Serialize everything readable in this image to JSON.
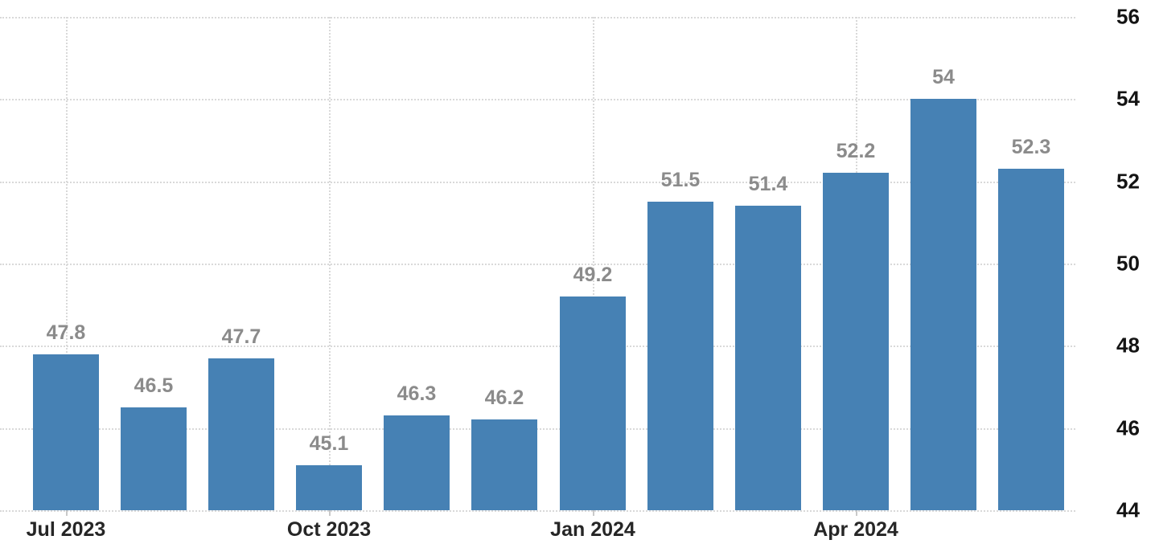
{
  "chart_data": {
    "type": "bar",
    "values": [
      47.8,
      46.5,
      47.7,
      45.1,
      46.3,
      46.2,
      49.2,
      51.5,
      51.4,
      52.2,
      54,
      52.3
    ],
    "data_labels": [
      "47.8",
      "46.5",
      "47.7",
      "45.1",
      "46.3",
      "46.2",
      "49.2",
      "51.5",
      "51.4",
      "52.2",
      "54",
      "52.3"
    ],
    "x_tick_labels": [
      {
        "bar_index": 0,
        "label": "Jul 2023"
      },
      {
        "bar_index": 3,
        "label": "Oct 2023"
      },
      {
        "bar_index": 6,
        "label": "Jan 2024"
      },
      {
        "bar_index": 9,
        "label": "Apr 2024"
      }
    ],
    "y_tick_labels": [
      "56",
      "54",
      "52",
      "50",
      "48",
      "46",
      "44"
    ],
    "ylim": [
      44,
      56
    ],
    "grid": true,
    "legend": false,
    "title": "",
    "xlabel": "",
    "ylabel": "",
    "colors": {
      "bar": "#4681b4",
      "gridline": "#d9d9d9",
      "data_label": "#8b8b8b",
      "x_axis_label": "#262626",
      "y_axis_label": "#141414"
    }
  }
}
